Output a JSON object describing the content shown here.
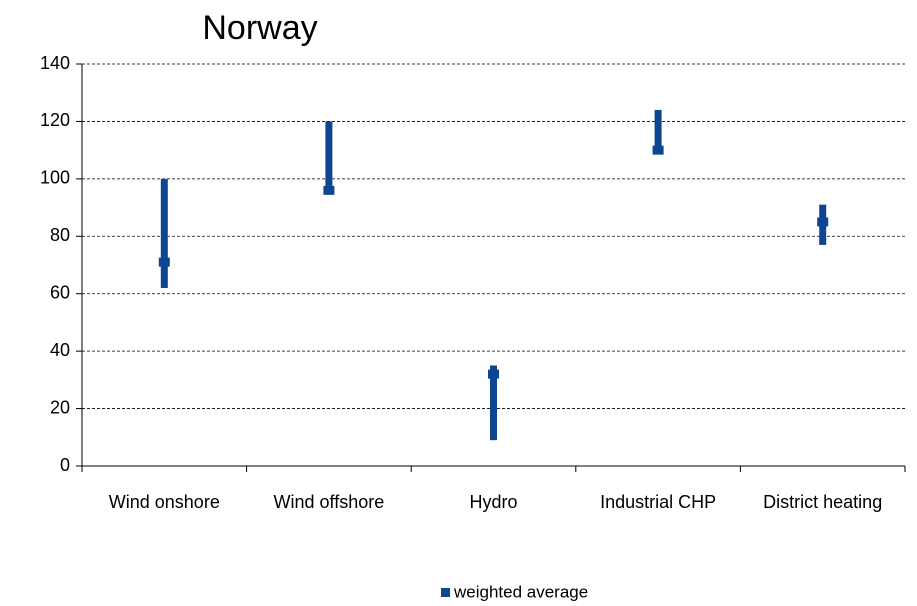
{
  "chart_data": {
    "type": "range",
    "title": "Norway",
    "categories": [
      "Wind onshore",
      "Wind offshore",
      "Hydro",
      "Industrial CHP",
      "District heating"
    ],
    "low": [
      62,
      95,
      9,
      109,
      77
    ],
    "high": [
      100,
      120,
      35,
      124,
      91
    ],
    "range_color": "#0e4593",
    "series": [
      {
        "name": "weighted average",
        "color": "#0e4593",
        "values": [
          71,
          96,
          32,
          110,
          85
        ]
      }
    ],
    "ylim": [
      0,
      140
    ],
    "yticks": [
      0,
      20,
      40,
      60,
      80,
      100,
      120,
      140
    ],
    "grid": true,
    "legend": "bottom"
  }
}
